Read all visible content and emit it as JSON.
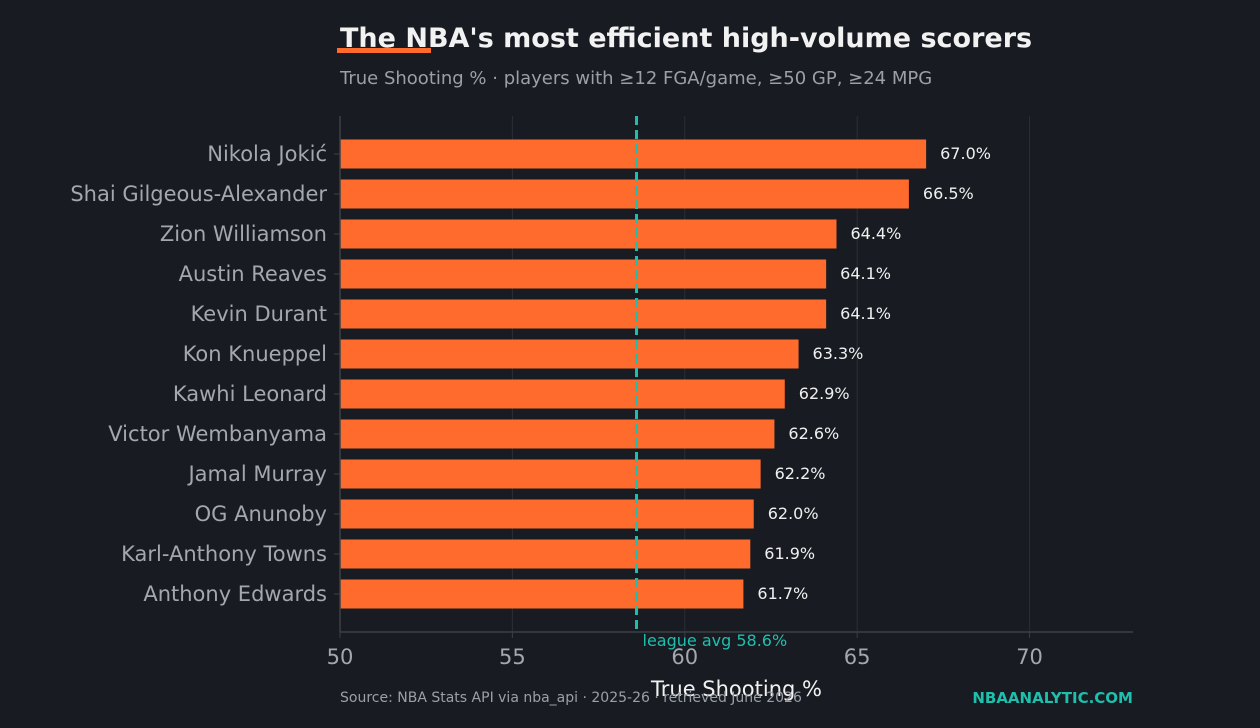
{
  "header": {
    "title": "The NBA's most efficient high-volume scorers",
    "subtitle": "True Shooting % · players with ≥12 FGA/game, ≥50 GP, ≥24 MPG"
  },
  "footer": {
    "source": "Source: NBA Stats API via nba_api · 2025-26 · retrieved June 2026",
    "brand": "NBAANALYTIC.COM"
  },
  "colors": {
    "background": "#181c22",
    "bar": "#ff6b2c",
    "accent": "#1fbfad",
    "grid": "#2a2f36",
    "axis": "#3a3f46"
  },
  "chart_data": {
    "type": "bar",
    "orientation": "horizontal",
    "categories": [
      "Nikola Jokić",
      "Shai Gilgeous-Alexander",
      "Zion Williamson",
      "Austin Reaves",
      "Kevin Durant",
      "Kon Knueppel",
      "Kawhi Leonard",
      "Victor Wembanyama",
      "Jamal Murray",
      "OG Anunoby",
      "Karl-Anthony Towns",
      "Anthony Edwards"
    ],
    "values": [
      67.0,
      66.5,
      64.4,
      64.1,
      64.1,
      63.3,
      62.9,
      62.6,
      62.2,
      62.0,
      61.9,
      61.7
    ],
    "value_labels": [
      "67.0%",
      "66.5%",
      "64.4%",
      "64.1%",
      "64.1%",
      "63.3%",
      "62.9%",
      "62.6%",
      "62.2%",
      "62.0%",
      "61.9%",
      "61.7%"
    ],
    "xlabel": "True Shooting %",
    "xlim": [
      50,
      73
    ],
    "xticks": [
      50,
      55,
      60,
      65,
      70
    ],
    "grid": "vertical",
    "reference_line": {
      "value": 58.6,
      "label": "league avg 58.6%"
    }
  }
}
